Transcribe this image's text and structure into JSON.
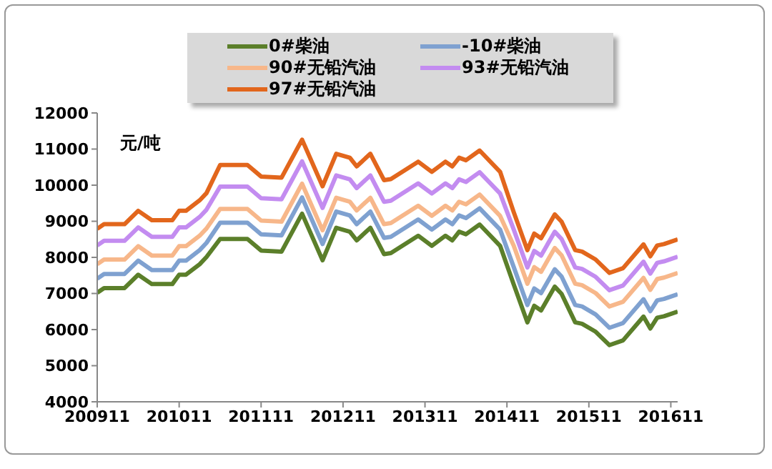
{
  "chart_data": {
    "type": "line",
    "ylabel": "元/吨",
    "x": [
      "2009-11",
      "2009-12",
      "2010-03",
      "2010-05",
      "2010-07",
      "2010-10",
      "2010-11",
      "2010-12",
      "2011-02",
      "2011-03",
      "2011-05",
      "2011-09",
      "2011-11",
      "2012-02",
      "2012-05",
      "2012-08",
      "2012-10",
      "2012-12",
      "2013-01",
      "2013-03",
      "2013-05",
      "2013-06",
      "2013-10",
      "2013-12",
      "2014-02",
      "2014-03",
      "2014-04",
      "2014-05",
      "2014-07",
      "2014-10",
      "2014-12",
      "2015-02",
      "2015-03",
      "2015-04",
      "2015-06",
      "2015-07",
      "2015-09",
      "2015-10",
      "2015-12",
      "2016-02",
      "2016-04",
      "2016-07",
      "2016-08",
      "2016-09",
      "2016-10",
      "2016-12"
    ],
    "series": [
      {
        "name": "0#柴油",
        "color": "#5b7f2a",
        "values": [
          7020,
          7150,
          7150,
          7520,
          7260,
          7260,
          7520,
          7520,
          7810,
          8010,
          8510,
          8510,
          8190,
          8160,
          9210,
          7920,
          8820,
          8710,
          8470,
          8820,
          8090,
          8120,
          8600,
          8320,
          8600,
          8470,
          8710,
          8640,
          8910,
          8320,
          7250,
          6200,
          6660,
          6530,
          7190,
          6990,
          6200,
          6160,
          5940,
          5570,
          5700,
          6360,
          6030,
          6330,
          6370,
          6500
        ]
      },
      {
        "name": "-10#柴油",
        "color": "#7fa1d0",
        "values": [
          7410,
          7540,
          7540,
          7910,
          7650,
          7650,
          7910,
          7910,
          8200,
          8400,
          8960,
          8960,
          8640,
          8610,
          9660,
          8370,
          9270,
          9160,
          8920,
          9270,
          8540,
          8570,
          9050,
          8770,
          9050,
          8920,
          9160,
          9090,
          9360,
          8770,
          7730,
          6680,
          7140,
          7010,
          7670,
          7470,
          6680,
          6640,
          6420,
          6050,
          6180,
          6840,
          6510,
          6810,
          6850,
          6980
        ]
      },
      {
        "name": "90#无铅汽油",
        "color": "#f7b78a",
        "values": [
          7810,
          7940,
          7940,
          8310,
          8050,
          8050,
          8310,
          8310,
          8600,
          8800,
          9340,
          9340,
          9020,
          8990,
          10040,
          8750,
          9650,
          9540,
          9300,
          9650,
          8920,
          8950,
          9430,
          9150,
          9430,
          9300,
          9540,
          9470,
          9740,
          9150,
          8320,
          7270,
          7730,
          7600,
          8260,
          8060,
          7270,
          7230,
          7010,
          6640,
          6770,
          7430,
          7100,
          7400,
          7440,
          7570
        ]
      },
      {
        "name": "93#无铅汽油",
        "color": "#c38cf0",
        "values": [
          8330,
          8460,
          8460,
          8830,
          8570,
          8570,
          8830,
          8830,
          9120,
          9320,
          9960,
          9960,
          9640,
          9610,
          10660,
          9370,
          10270,
          10160,
          9920,
          10270,
          9540,
          9570,
          10050,
          9770,
          10050,
          9920,
          10160,
          10090,
          10360,
          9770,
          8770,
          7720,
          8180,
          8050,
          8710,
          8510,
          7720,
          7680,
          7460,
          7090,
          7220,
          7880,
          7550,
          7850,
          7890,
          8020
        ]
      },
      {
        "name": "97#无铅汽油",
        "color": "#e2661c",
        "values": [
          8790,
          8920,
          8920,
          9290,
          9030,
          9030,
          9290,
          9290,
          9580,
          9780,
          10560,
          10560,
          10240,
          10210,
          11260,
          9970,
          10870,
          10760,
          10520,
          10870,
          10140,
          10170,
          10650,
          10370,
          10650,
          10520,
          10760,
          10690,
          10960,
          10370,
          9250,
          8200,
          8660,
          8530,
          9190,
          8990,
          8200,
          8160,
          7940,
          7570,
          7700,
          8360,
          8030,
          8330,
          8370,
          8500
        ]
      }
    ],
    "xlim": [
      "2009-11",
      "2016-12"
    ],
    "xticks": [
      {
        "value": "2009-11",
        "label": "200911"
      },
      {
        "value": "2010-11",
        "label": "201011"
      },
      {
        "value": "2011-11",
        "label": "201111"
      },
      {
        "value": "2012-11",
        "label": "201211"
      },
      {
        "value": "2013-11",
        "label": "201311"
      },
      {
        "value": "2014-11",
        "label": "201411"
      },
      {
        "value": "2015-11",
        "label": "201511"
      },
      {
        "value": "2016-11",
        "label": "201611"
      }
    ],
    "ylim": [
      4000,
      12000
    ],
    "yticks": [
      4000,
      5000,
      6000,
      7000,
      8000,
      9000,
      10000,
      11000,
      12000
    ],
    "legend": "top",
    "marker": "none",
    "line_style": "solid"
  }
}
